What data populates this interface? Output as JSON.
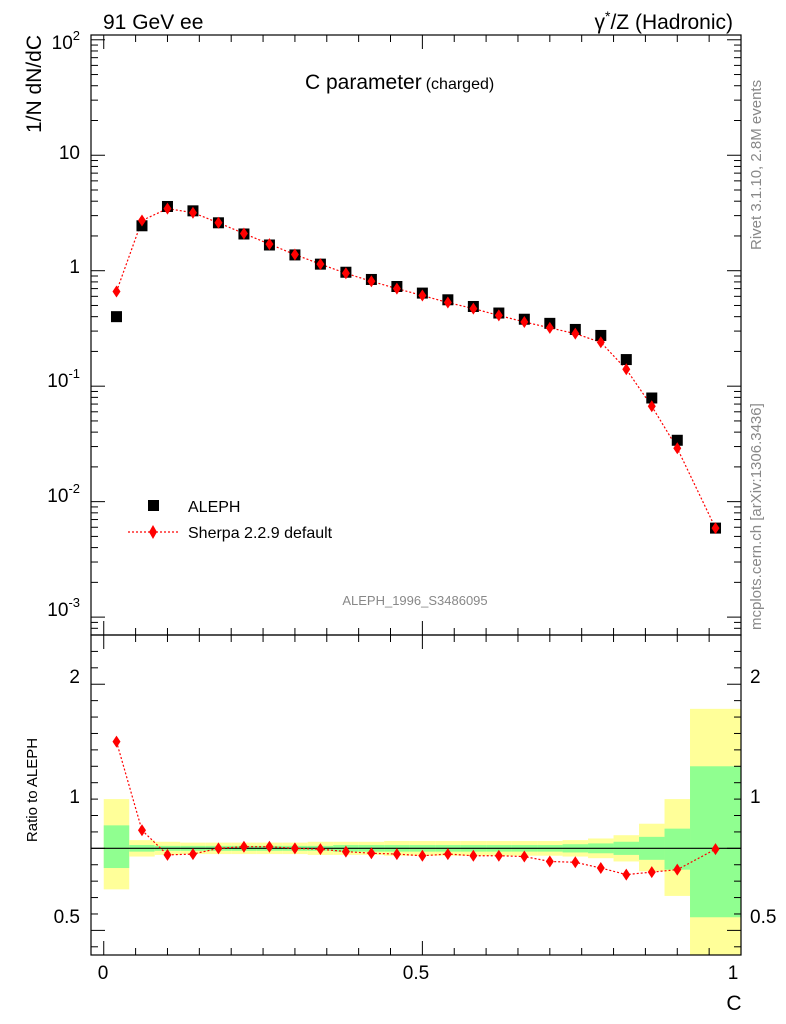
{
  "header": {
    "left": "91 GeV ee",
    "right_sup": "*",
    "right_pre": "γ",
    "right_post": "/Z (Hadronic)"
  },
  "side_text": {
    "top": "Rivet 3.1.10,  2.8M events",
    "bottom": "mcplots.cern.ch [arXiv:1306.3436]"
  },
  "chart_data": [
    {
      "type": "scatter",
      "title_main": "C parameter",
      "title_sub": "(charged)",
      "watermark": "ALEPH_1996_S3486095",
      "ylabel": "1/N dN/dC",
      "yscale": "log",
      "ylim": [
        0.0007,
        110
      ],
      "xlim": [
        -0.02,
        1.0
      ],
      "ytick_labels": {
        "decade_minus3": {
          "base": "10",
          "exp": "-3"
        },
        "decade_minus2": {
          "base": "10",
          "exp": "-2"
        },
        "decade_minus1": {
          "base": "10",
          "exp": "-1"
        },
        "one": "1",
        "ten": "10",
        "decade_2": {
          "base": "10",
          "exp": "2"
        }
      },
      "legend": {
        "placement": "lower-left",
        "data_label": "ALEPH",
        "mc_label": "Sherpa 2.2.9 default"
      },
      "x": [
        0.02,
        0.06,
        0.1,
        0.14,
        0.18,
        0.22,
        0.26,
        0.3,
        0.34,
        0.38,
        0.42,
        0.46,
        0.5,
        0.54,
        0.58,
        0.62,
        0.66,
        0.7,
        0.74,
        0.78,
        0.82,
        0.86,
        0.9,
        0.96
      ],
      "series": [
        {
          "name": "ALEPH",
          "marker": "square",
          "color": "#000000",
          "values": [
            0.4,
            2.45,
            3.6,
            3.3,
            2.6,
            2.08,
            1.67,
            1.37,
            1.14,
            0.97,
            0.84,
            0.73,
            0.64,
            0.56,
            0.49,
            0.43,
            0.38,
            0.35,
            0.31,
            0.275,
            0.17,
            0.079,
            0.034,
            0.0059
          ]
        },
        {
          "name": "Sherpa 2.2.9 default",
          "marker": "diamond",
          "line": "dotted",
          "color": "#ff0000",
          "values": [
            0.66,
            2.72,
            3.45,
            3.18,
            2.6,
            2.1,
            1.7,
            1.38,
            1.14,
            0.95,
            0.81,
            0.7,
            0.61,
            0.53,
            0.47,
            0.41,
            0.36,
            0.32,
            0.285,
            0.24,
            0.14,
            0.067,
            0.029,
            0.0059
          ]
        }
      ]
    },
    {
      "type": "scatter",
      "ylabel": "Ratio to ALEPH",
      "xlabel": "C",
      "ylim": [
        0.35,
        2.3
      ],
      "xlim": [
        -0.02,
        1.0
      ],
      "ytick_labels": [
        "0.5",
        "1",
        "2"
      ],
      "xtick_labels": [
        "0",
        "0.5",
        "1"
      ],
      "band_edges": [
        0,
        0.04,
        0.08,
        0.12,
        0.16,
        0.2,
        0.24,
        0.28,
        0.32,
        0.36,
        0.4,
        0.44,
        0.48,
        0.52,
        0.56,
        0.6,
        0.64,
        0.68,
        0.72,
        0.76,
        0.8,
        0.84,
        0.88,
        0.92,
        1.0
      ],
      "band_inner": [
        [
          0.88,
          1.14
        ],
        [
          0.98,
          1.02
        ],
        [
          0.985,
          1.015
        ],
        [
          0.985,
          1.015
        ],
        [
          0.985,
          1.015
        ],
        [
          0.985,
          1.015
        ],
        [
          0.985,
          1.015
        ],
        [
          0.985,
          1.015
        ],
        [
          0.985,
          1.015
        ],
        [
          0.98,
          1.02
        ],
        [
          0.98,
          1.02
        ],
        [
          0.98,
          1.02
        ],
        [
          0.98,
          1.02
        ],
        [
          0.98,
          1.02
        ],
        [
          0.98,
          1.02
        ],
        [
          0.98,
          1.02
        ],
        [
          0.98,
          1.02
        ],
        [
          0.98,
          1.02
        ],
        [
          0.975,
          1.025
        ],
        [
          0.97,
          1.03
        ],
        [
          0.96,
          1.04
        ],
        [
          0.93,
          1.07
        ],
        [
          0.87,
          1.12
        ],
        [
          0.58,
          1.5
        ]
      ],
      "band_outer": [
        [
          0.75,
          1.3
        ],
        [
          0.95,
          1.05
        ],
        [
          0.96,
          1.04
        ],
        [
          0.965,
          1.035
        ],
        [
          0.965,
          1.035
        ],
        [
          0.965,
          1.035
        ],
        [
          0.965,
          1.035
        ],
        [
          0.965,
          1.035
        ],
        [
          0.96,
          1.04
        ],
        [
          0.96,
          1.04
        ],
        [
          0.96,
          1.04
        ],
        [
          0.955,
          1.045
        ],
        [
          0.955,
          1.045
        ],
        [
          0.955,
          1.045
        ],
        [
          0.955,
          1.045
        ],
        [
          0.955,
          1.045
        ],
        [
          0.955,
          1.045
        ],
        [
          0.955,
          1.045
        ],
        [
          0.95,
          1.05
        ],
        [
          0.94,
          1.06
        ],
        [
          0.92,
          1.08
        ],
        [
          0.86,
          1.15
        ],
        [
          0.71,
          1.3
        ],
        [
          0.33,
          1.85
        ]
      ],
      "reference": 1,
      "series": [
        {
          "name": "Sherpa 2.2.9 default",
          "color": "#ff0000",
          "values": [
            1.65,
            1.11,
            0.96,
            0.965,
            1.0,
            1.01,
            1.01,
            1.0,
            0.995,
            0.98,
            0.97,
            0.965,
            0.955,
            0.965,
            0.955,
            0.955,
            0.95,
            0.92,
            0.915,
            0.88,
            0.84,
            0.855,
            0.87,
            0.995
          ]
        }
      ]
    }
  ],
  "colors": {
    "band_inner": "#90ff90",
    "band_outer": "#ffff99",
    "marker_mc": "#ff0000",
    "marker_data": "#000000"
  }
}
